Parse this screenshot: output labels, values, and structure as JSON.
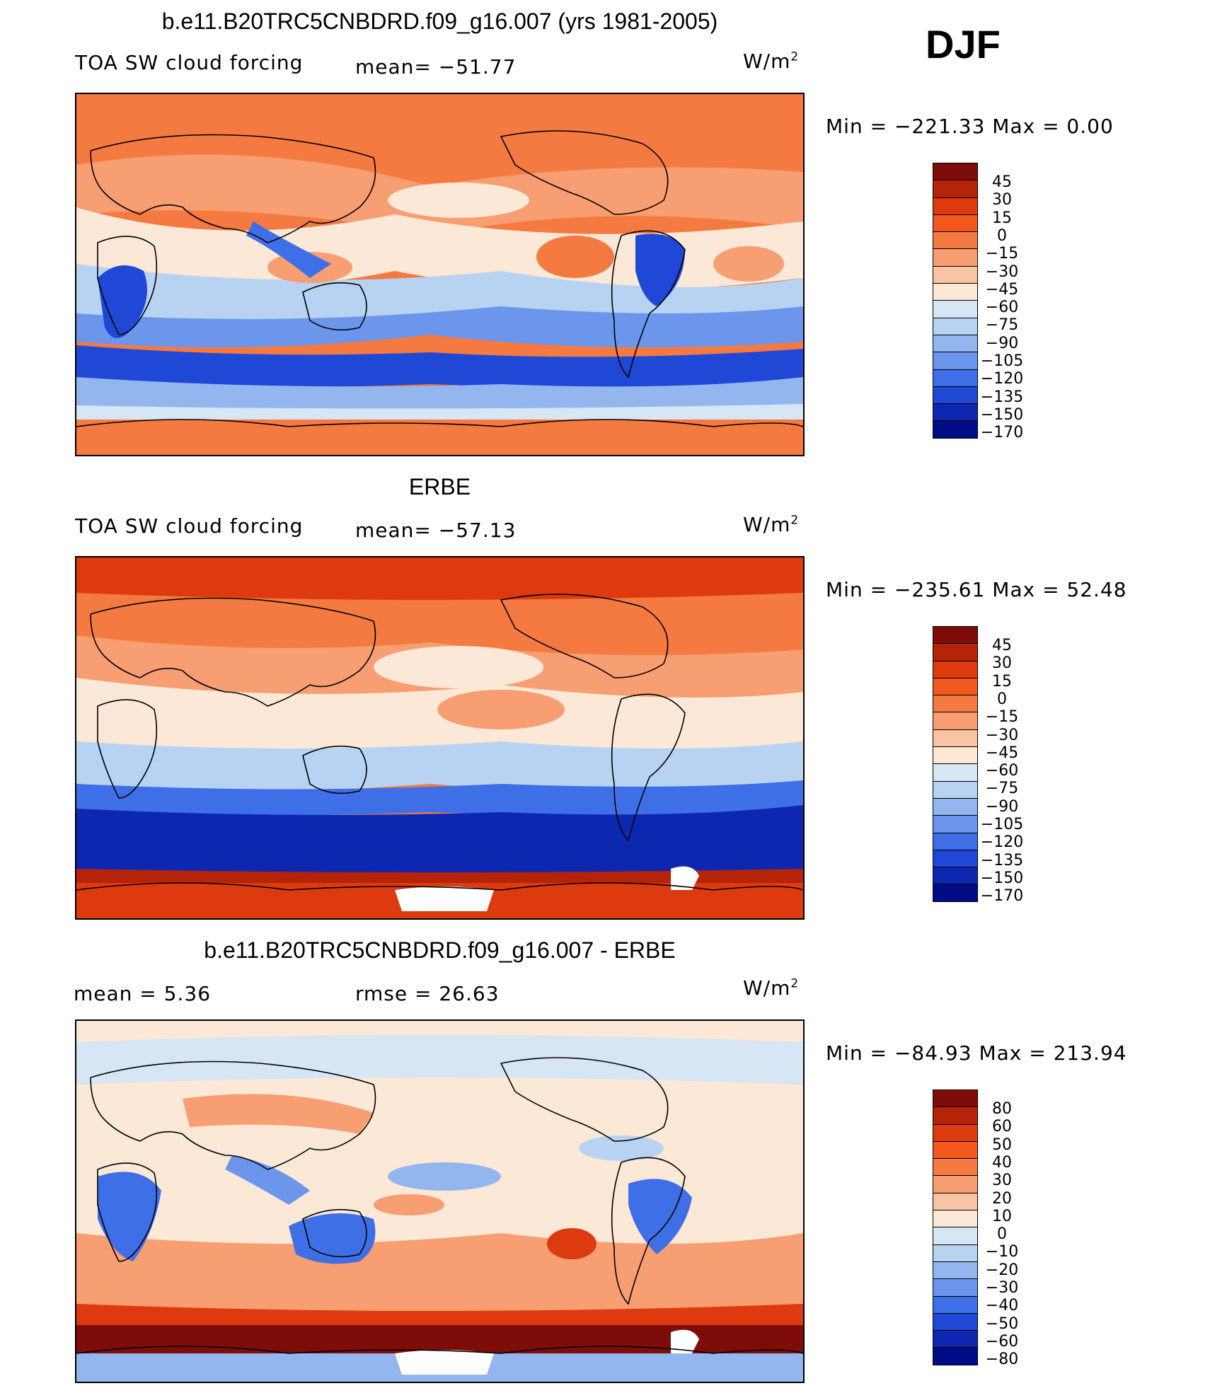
{
  "season": "DJF",
  "panels": [
    {
      "id": "model",
      "title": "b.e11.B20TRC5CNBDRD.f09_g16.007 (yrs 1981-2005)",
      "left_label": "TOA SW cloud forcing",
      "center_label": "mean= −51.77",
      "unit": "W/m",
      "unit_sup": "2",
      "minmax": "Min = −221.33 Max =    0.00",
      "colorbar": {
        "labels": [
          "45",
          "30",
          "15",
          "0",
          "−15",
          "−30",
          "−45",
          "−60",
          "−75",
          "−90",
          "−105",
          "−120",
          "−135",
          "−150",
          "−170"
        ],
        "colors": [
          "#7e0d0a",
          "#b52308",
          "#dd3a10",
          "#f3581f",
          "#f47a41",
          "#f79e72",
          "#f9c4a3",
          "#fbe8d6",
          "#d6e6f5",
          "#b8d2f2",
          "#93b6ef",
          "#6b96ec",
          "#3f6fe6",
          "#1f48d6",
          "#0d27b0",
          "#000c86"
        ]
      }
    },
    {
      "id": "obs",
      "title": "ERBE",
      "left_label": "TOA SW cloud forcing",
      "center_label": "mean= −57.13",
      "unit": "W/m",
      "unit_sup": "2",
      "minmax": "Min = −235.61 Max =   52.48",
      "colorbar": {
        "labels": [
          "45",
          "30",
          "15",
          "0",
          "−15",
          "−30",
          "−45",
          "−60",
          "−75",
          "−90",
          "−105",
          "−120",
          "−135",
          "−150",
          "−170"
        ],
        "colors": [
          "#7e0d0a",
          "#b52308",
          "#dd3a10",
          "#f3581f",
          "#f47a41",
          "#f79e72",
          "#f9c4a3",
          "#fbe8d6",
          "#d6e6f5",
          "#b8d2f2",
          "#93b6ef",
          "#6b96ec",
          "#3f6fe6",
          "#1f48d6",
          "#0d27b0",
          "#000c86"
        ]
      }
    },
    {
      "id": "diff",
      "title": "b.e11.B20TRC5CNBDRD.f09_g16.007 - ERBE",
      "left_label": "mean =     5.36",
      "center_label": "rmse =   26.63",
      "unit": "W/m",
      "unit_sup": "2",
      "minmax": "Min = −84.93 Max = 213.94",
      "colorbar": {
        "labels": [
          "80",
          "60",
          "50",
          "40",
          "30",
          "20",
          "10",
          "0",
          "−10",
          "−20",
          "−30",
          "−40",
          "−50",
          "−60",
          "−80"
        ],
        "colors": [
          "#7e0d0a",
          "#b52308",
          "#dd3a10",
          "#f3581f",
          "#f47a41",
          "#f79e72",
          "#f9c4a3",
          "#fbe8d6",
          "#d6e6f5",
          "#b8d2f2",
          "#93b6ef",
          "#6b96ec",
          "#3f6fe6",
          "#1f48d6",
          "#0d27b0",
          "#000c86"
        ]
      }
    }
  ]
}
